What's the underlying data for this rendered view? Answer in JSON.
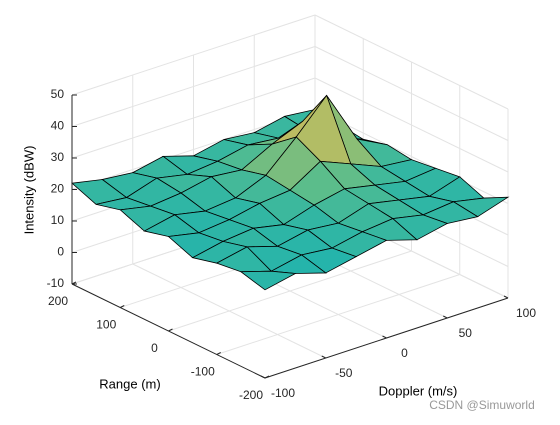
{
  "chart_data": {
    "type": "surface",
    "xlabel": "Doppler (m/s)",
    "ylabel": "Range (m)",
    "zlabel": "Intensity (dBW)",
    "x": [
      -100,
      -75,
      -50,
      -25,
      0,
      25,
      50,
      75,
      100
    ],
    "y": [
      -200,
      -150,
      -100,
      -50,
      0,
      50,
      100,
      150,
      200
    ],
    "z": [
      [
        18,
        20,
        17,
        19,
        21,
        18,
        20,
        19,
        22
      ],
      [
        20,
        17,
        19,
        18,
        20,
        21,
        19,
        20,
        18
      ],
      [
        19,
        21,
        18,
        20,
        19,
        22,
        20,
        18,
        21
      ],
      [
        17,
        19,
        20,
        18,
        21,
        23,
        21,
        19,
        20
      ],
      [
        20,
        18,
        19,
        21,
        22,
        28,
        24,
        20,
        19
      ],
      [
        18,
        20,
        18,
        19,
        23,
        32,
        42,
        25,
        20
      ],
      [
        21,
        19,
        20,
        22,
        21,
        26,
        30,
        22,
        18
      ],
      [
        19,
        18,
        21,
        19,
        20,
        22,
        21,
        20,
        19
      ],
      [
        22,
        20,
        19,
        21,
        18,
        20,
        19,
        21,
        20
      ]
    ],
    "xlim": [
      -100,
      100
    ],
    "ylim": [
      -200,
      200
    ],
    "zlim": [
      -10,
      50
    ],
    "xticks": [
      -100,
      -50,
      0,
      50,
      100
    ],
    "yticks": [
      -200,
      -100,
      0,
      100,
      200
    ],
    "zticks": [
      -10,
      0,
      10,
      20,
      30,
      40,
      50
    ],
    "grid": true,
    "colormap": "parula",
    "watermark": "CSDN @Simuworld"
  }
}
